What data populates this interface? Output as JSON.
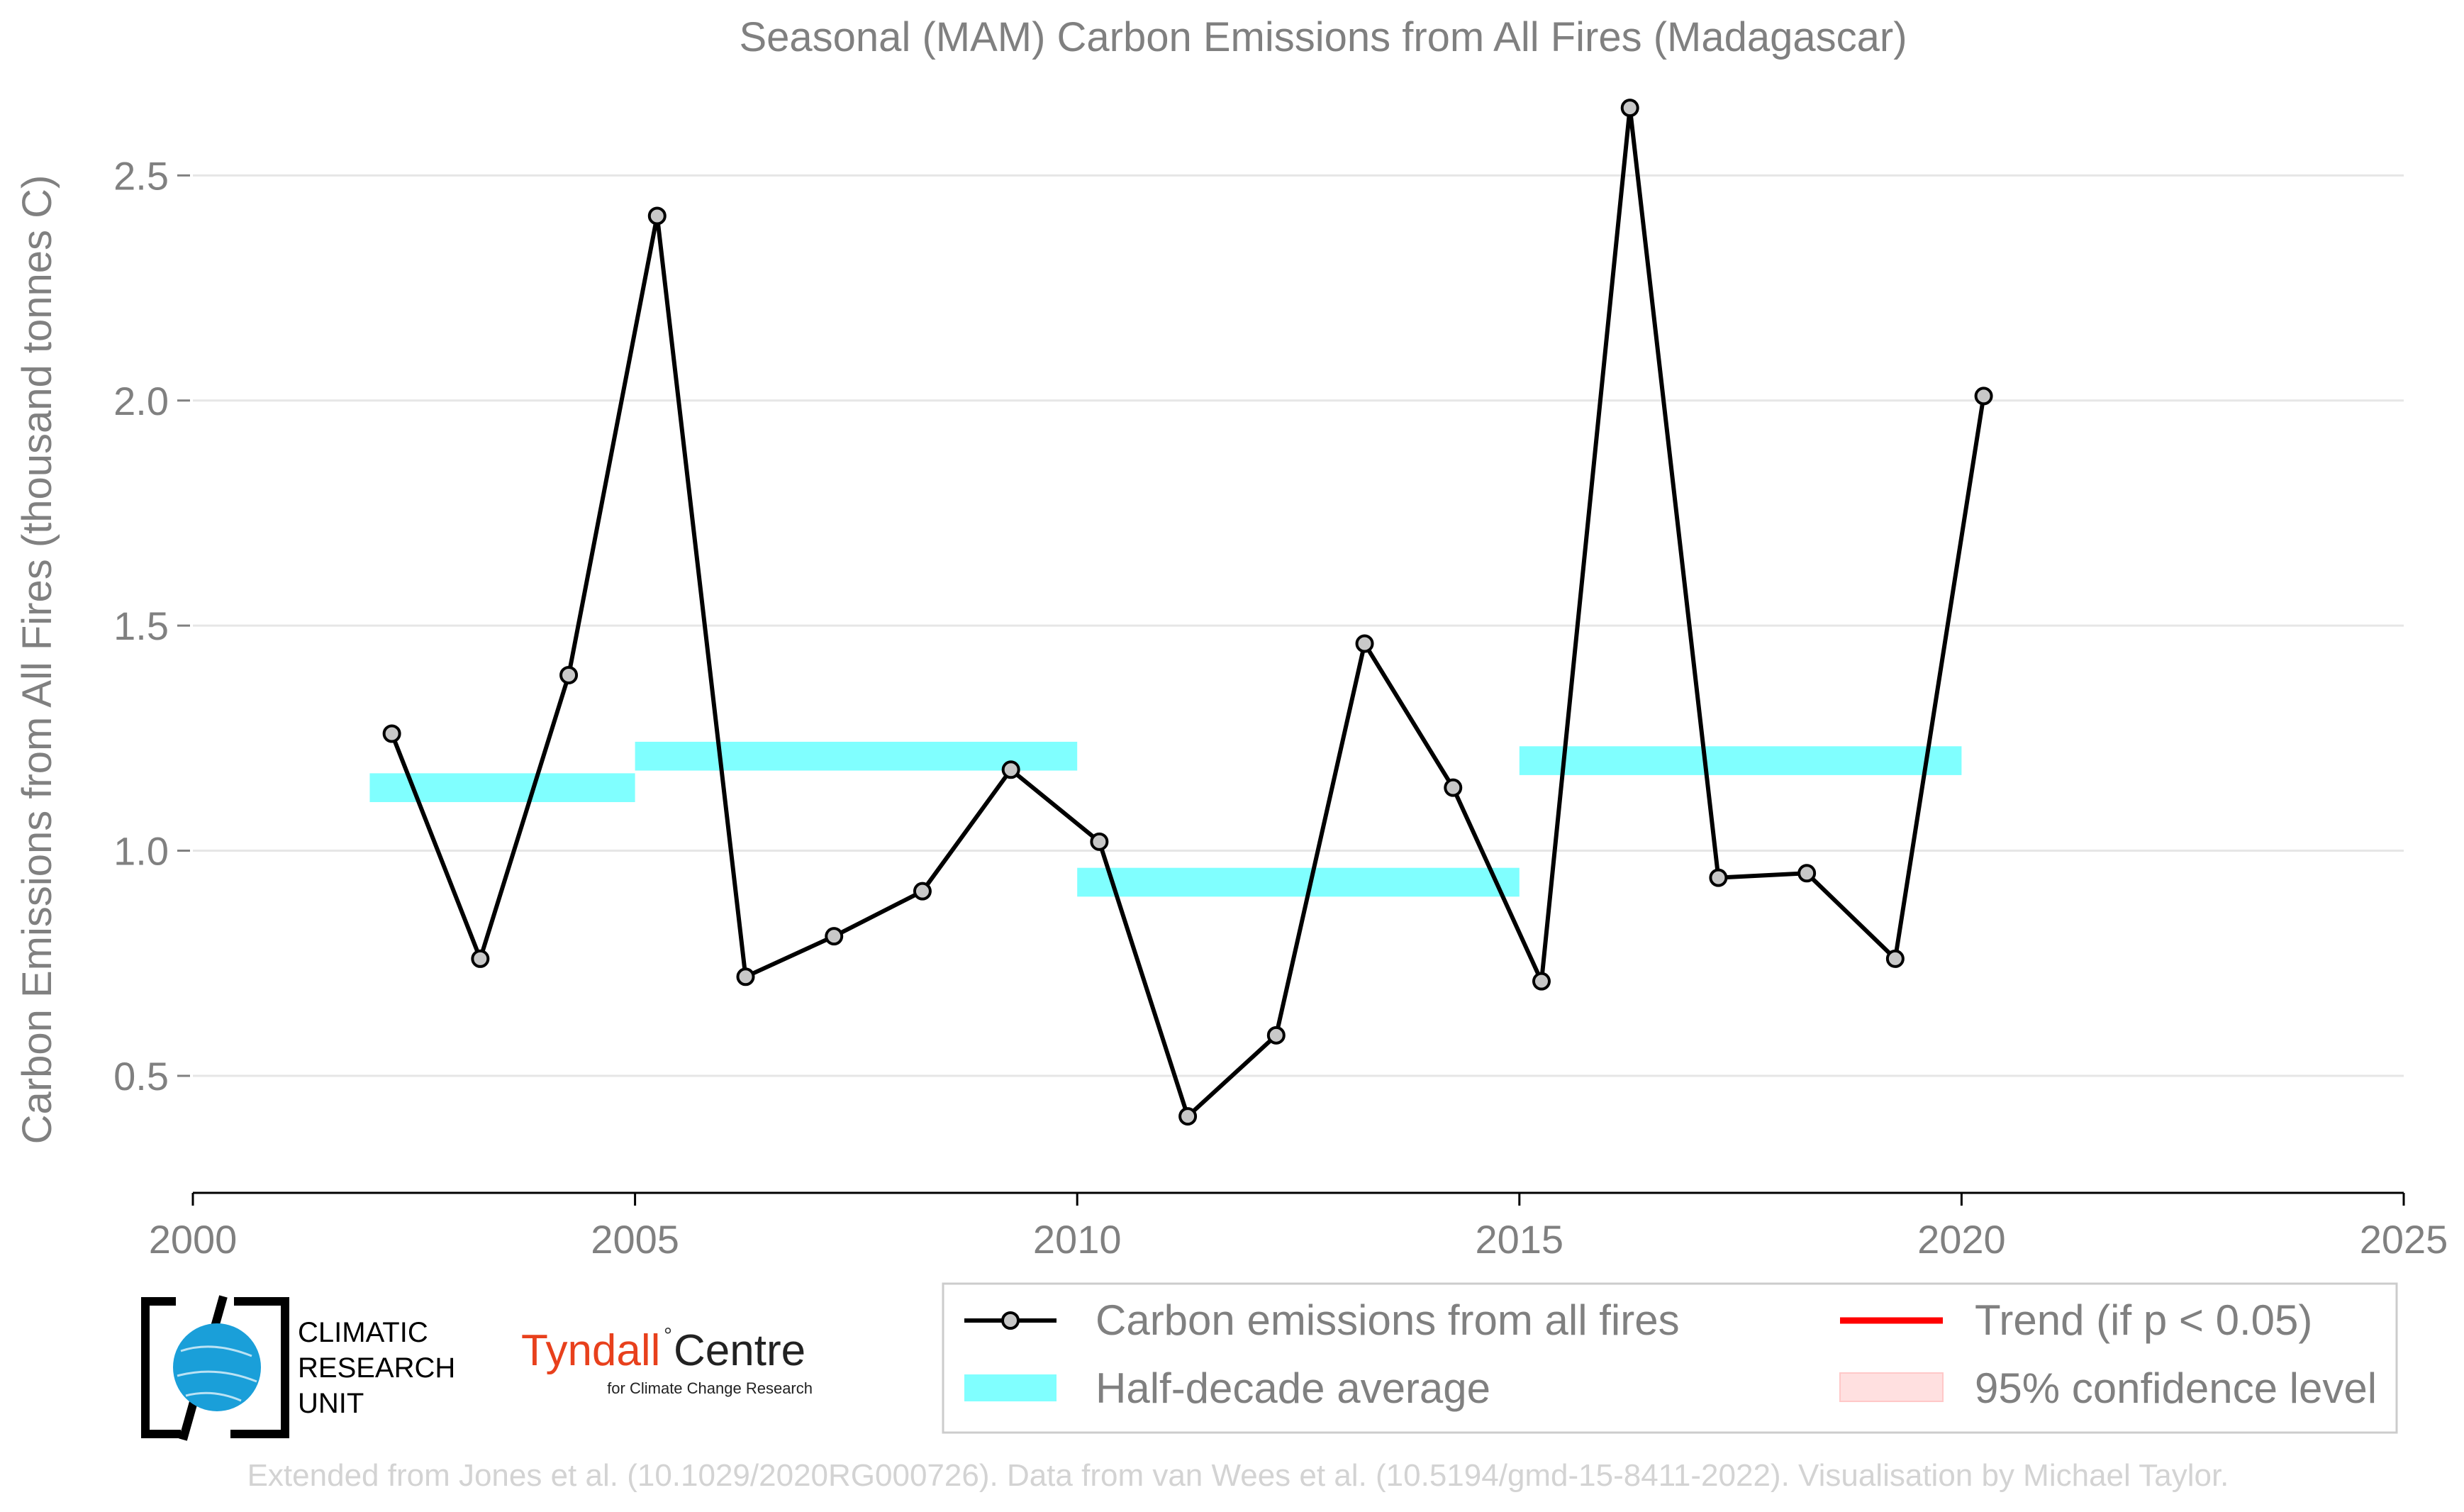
{
  "chart_data": {
    "type": "line",
    "title": "Seasonal (MAM) Carbon Emissions from All Fires (Madagascar)",
    "xlabel": "",
    "ylabel": "Carbon Emissions from All Fires (thousand tonnes C)",
    "xlim": [
      2000,
      2025
    ],
    "ylim": [
      0.24,
      2.74
    ],
    "x_ticks": [
      "2000",
      "2005",
      "2010",
      "2015",
      "2020",
      "2025"
    ],
    "x_tick_values": [
      2000,
      2005,
      2010,
      2015,
      2020,
      2025
    ],
    "y_ticks": [
      "0.5",
      "1.0",
      "1.5",
      "2.0",
      "2.5"
    ],
    "y_tick_values": [
      0.5,
      1.0,
      1.5,
      2.0,
      2.5
    ],
    "grid": "horizontal",
    "series": [
      {
        "name": "Carbon emissions from all fires",
        "color": "#000000",
        "marker_color": "#c8c8c8",
        "x": [
          2002.25,
          2003.25,
          2004.25,
          2005.25,
          2006.25,
          2007.25,
          2008.25,
          2009.25,
          2010.25,
          2011.25,
          2012.25,
          2013.25,
          2014.25,
          2015.25,
          2016.25,
          2017.25,
          2018.25,
          2019.25,
          2020.25
        ],
        "y": [
          1.26,
          0.76,
          1.39,
          2.41,
          0.72,
          0.81,
          0.91,
          1.18,
          1.02,
          0.41,
          0.59,
          1.46,
          1.14,
          0.71,
          2.65,
          0.94,
          0.95,
          0.76,
          2.01
        ]
      }
    ],
    "half_decade_average": {
      "name": "Half-decade average",
      "color": "#80ffff",
      "segments": [
        {
          "x_start": 2002,
          "x_end": 2005,
          "y": 1.14
        },
        {
          "x_start": 2005,
          "x_end": 2010,
          "y": 1.21
        },
        {
          "x_start": 2010,
          "x_end": 2015,
          "y": 0.93
        },
        {
          "x_start": 2015,
          "x_end": 2020,
          "y": 1.2
        }
      ]
    },
    "legend": {
      "position": "bottom-right",
      "entries": [
        {
          "label": "Carbon emissions from all fires",
          "kind": "line-marker",
          "color": "#000000"
        },
        {
          "label": "Trend (if p < 0.05)",
          "kind": "line",
          "color": "#ff0000"
        },
        {
          "label": "Half-decade average",
          "kind": "band",
          "color": "#80ffff"
        },
        {
          "label": "95% confidence level",
          "kind": "band",
          "color": "#ffe0e0"
        }
      ]
    }
  },
  "logos": {
    "cru_lines": [
      "CLIMATIC",
      "RESEARCH",
      "UNIT"
    ],
    "tyndall_name": "Tyndall",
    "tyndall_centre": "Centre",
    "tyndall_sub": "for Climate Change Research"
  },
  "footer": "Extended from Jones et al. (10.1029/2020RG000726). Data from van Wees et al. (10.5194/gmd-15-8411-2022). Visualisation by Michael Taylor."
}
